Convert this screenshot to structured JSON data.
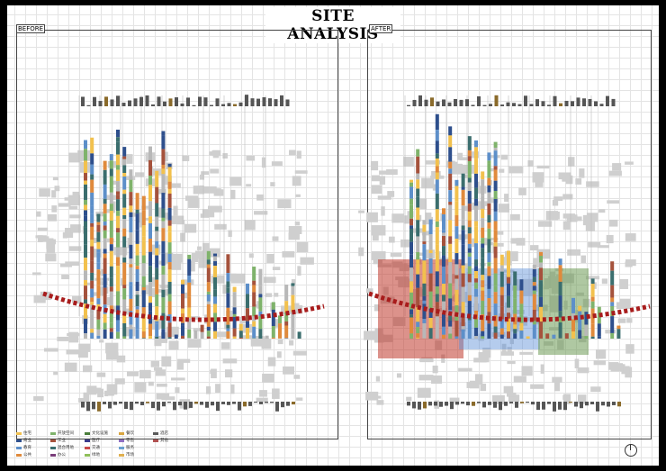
{
  "title": "SITE ANALYSIS",
  "panels": {
    "before_label": "BEFORE",
    "after_label": "AFTER"
  },
  "colors": {
    "block": "#cfcfcf",
    "road_dash": "#a81c1c",
    "zone_red": "#c0392b",
    "zone_blue": "#5b8fd6",
    "zone_green": "#6e9a55",
    "bar_palette": [
      "#f2c14e",
      "#2e4f8c",
      "#5d8fc9",
      "#e08a3c",
      "#7fb36b",
      "#a5523c",
      "#b8b8b8",
      "#3b6e6e"
    ]
  },
  "legend": {
    "items": [
      {
        "label": "住宅",
        "color": "#f2c14e"
      },
      {
        "label": "商业",
        "color": "#2e4f8c"
      },
      {
        "label": "教育",
        "color": "#5d8fc9"
      },
      {
        "label": "公共",
        "color": "#e08a3c"
      },
      {
        "label": "开放空间",
        "color": "#7fb36b"
      },
      {
        "label": "工业",
        "color": "#a5523c"
      },
      {
        "label": "混合用地",
        "color": "#3b6e6e"
      },
      {
        "label": "办公",
        "color": "#7a3e7a"
      },
      {
        "label": "文化设施",
        "color": "#4a7d3a"
      },
      {
        "label": "医疗",
        "color": "#3a3a8c"
      },
      {
        "label": "交通",
        "color": "#c84a4a"
      },
      {
        "label": "绿地",
        "color": "#8fbf5a"
      },
      {
        "label": "餐饮",
        "color": "#d9a640"
      },
      {
        "label": "零售",
        "color": "#8f6fc2"
      },
      {
        "label": "服务",
        "color": "#6a9fcf"
      },
      {
        "label": "市场",
        "color": "#e0b050"
      },
      {
        "label": "酒店",
        "color": "#5a5a5a"
      },
      {
        "label": "其他",
        "color": "#b05050"
      }
    ]
  }
}
